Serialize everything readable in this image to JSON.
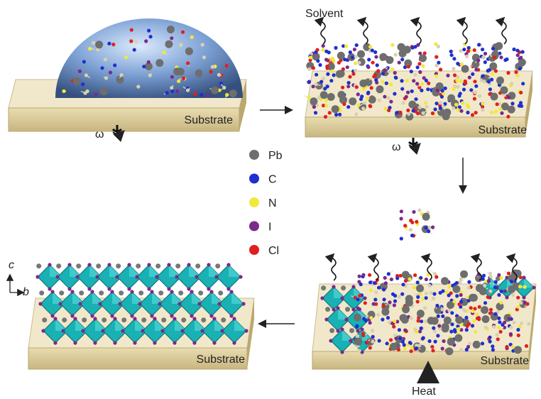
{
  "labels": {
    "solvent": "Solvent",
    "heat": "Heat",
    "omega": [
      "ω",
      "ω"
    ],
    "substrate": [
      "Substrate",
      "Substrate",
      "Substrate",
      "Substrate"
    ],
    "axes": {
      "c": "c",
      "b": "b"
    }
  },
  "legend": [
    {
      "label": "Pb",
      "color": "#6e6e6e"
    },
    {
      "label": "C",
      "color": "#1f2fd0"
    },
    {
      "label": "N",
      "color": "#f2e83a"
    },
    {
      "label": "I",
      "color": "#7a2a8a"
    },
    {
      "label": "Cl",
      "color": "#e0201e"
    }
  ]
}
